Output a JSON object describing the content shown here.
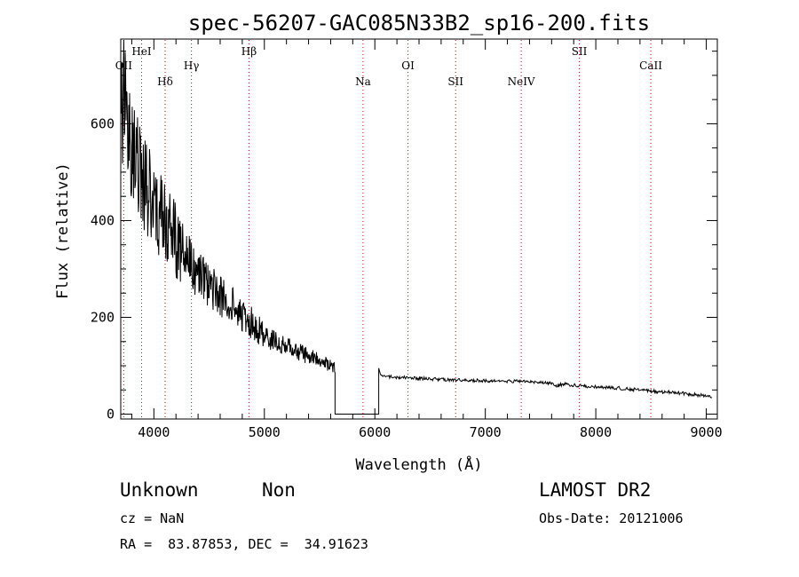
{
  "chart_data": {
    "type": "line",
    "title": "spec-56207-GAC085N33B2_sp16-200.fits",
    "xlabel": "Wavelength (Å)",
    "ylabel": "Flux (relative)",
    "xlim": [
      3700,
      9100
    ],
    "ylim": [
      -10,
      775
    ],
    "x_ticks": [
      4000,
      5000,
      6000,
      7000,
      8000,
      9000
    ],
    "y_ticks": [
      0,
      200,
      400,
      600
    ],
    "grid": false,
    "line_color": "#000000",
    "marker_color": "#cc0000",
    "gap": [
      5640,
      6040
    ],
    "spectrum": {
      "x": [
        3700,
        3730,
        3760,
        3790,
        3820,
        3850,
        3880,
        3910,
        3940,
        3970,
        4000,
        4040,
        4080,
        4120,
        4160,
        4200,
        4250,
        4300,
        4350,
        4400,
        4450,
        4500,
        4550,
        4600,
        4650,
        4700,
        4750,
        4800,
        4850,
        4900,
        4950,
        5000,
        5050,
        5100,
        5150,
        5200,
        5250,
        5300,
        5350,
        5400,
        5450,
        5500,
        5550,
        5600,
        5630,
        6050,
        6100,
        6200,
        6300,
        6400,
        6500,
        6600,
        6700,
        6800,
        6900,
        7000,
        7100,
        7200,
        7300,
        7400,
        7500,
        7600,
        7650,
        7700,
        7800,
        7900,
        8000,
        8100,
        8200,
        8300,
        8400,
        8500,
        8600,
        8700,
        8800,
        8900,
        9000,
        9050
      ],
      "y": [
        620,
        640,
        600,
        580,
        560,
        520,
        500,
        480,
        470,
        450,
        440,
        420,
        400,
        385,
        370,
        360,
        340,
        320,
        300,
        290,
        275,
        265,
        255,
        245,
        235,
        225,
        215,
        205,
        195,
        185,
        175,
        165,
        155,
        150,
        145,
        140,
        135,
        130,
        125,
        120,
        115,
        110,
        105,
        100,
        95,
        80,
        78,
        76,
        75,
        74,
        73,
        72,
        71,
        70,
        70,
        69,
        69,
        68,
        68,
        67,
        66,
        64,
        58,
        62,
        60,
        58,
        56,
        55,
        54,
        52,
        50,
        48,
        46,
        45,
        43,
        40,
        38,
        36
      ]
    },
    "lines": [
      {
        "label": "OII",
        "x": 3727,
        "level": 2
      },
      {
        "label": "HeI",
        "x": 3889,
        "level": 1
      },
      {
        "label": "Hδ",
        "x": 4102,
        "level": 3
      },
      {
        "label": "Hγ",
        "x": 4340,
        "level": 2
      },
      {
        "label": "Hβ",
        "x": 4861,
        "level": 1
      },
      {
        "label": "Na",
        "x": 5893,
        "level": 3
      },
      {
        "label": "OI",
        "x": 6300,
        "level": 2
      },
      {
        "label": "SII",
        "x": 6731,
        "level": 3
      },
      {
        "label": "NeIV",
        "x": 7325,
        "level": 3
      },
      {
        "label": "SII",
        "x": 7851,
        "level": 1
      },
      {
        "label": "CaII",
        "x": 8498,
        "level": 2
      }
    ]
  },
  "footer": {
    "object_type": "Unknown",
    "subclass": "Non",
    "survey": "LAMOST DR2",
    "cz": "cz = NaN",
    "obs_date": "Obs-Date: 20121006",
    "coords": "RA =  83.87853, DEC =  34.91623"
  }
}
